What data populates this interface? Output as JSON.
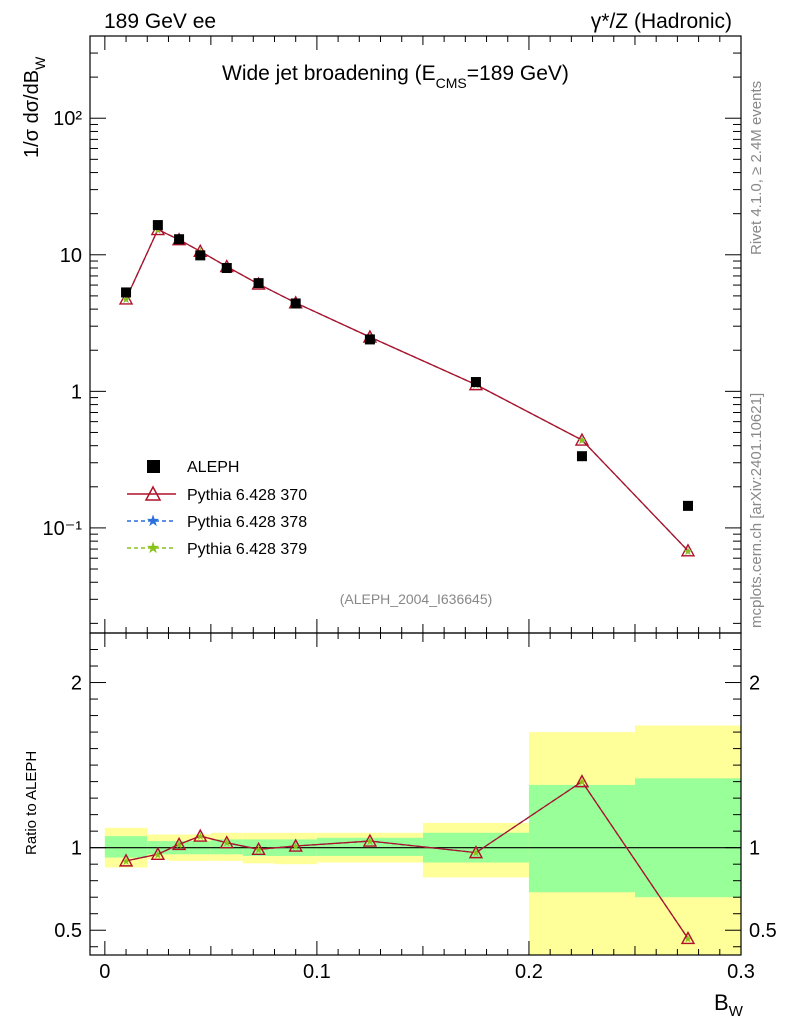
{
  "header": {
    "left_label": "189 GeV ee",
    "right_label": "γ*/Z (Hadronic)",
    "side_label_top": "Rivet 4.1.0, ≥ 2.4M events",
    "side_label_bottom": "mcplots.cern.ch [arXiv:2401.10621]"
  },
  "chart_data": {
    "type": "line",
    "title": "Wide jet broadening (E_CMS=189 GeV)",
    "title_main": "Wide jet broadening (E",
    "title_sub": "CMS",
    "title_end": "=189 GeV)",
    "analysis_label": "(ALEPH_2004_I636645)",
    "xlabel": "B_W",
    "xlabel_main": "B",
    "xlabel_sub": "W",
    "ylabel": "1/σ dσ/dB_W",
    "ylabel_main": "1/σ  dσ/dB",
    "ylabel_sub": "W",
    "ratio_ylabel": "Ratio to ALEPH",
    "xlim": [
      -0.007,
      0.3
    ],
    "ylim": [
      0.017,
      400
    ],
    "yscale": "log",
    "ratio_ylim": [
      0.35,
      2.3
    ],
    "x_ticks": [
      0,
      0.1,
      0.2,
      0.3
    ],
    "x_tick_labels": [
      "0",
      "0.1",
      "0.2",
      "0.3"
    ],
    "y_ticks": [
      0.1,
      1,
      10,
      100
    ],
    "y_tick_labels": [
      "10⁻¹",
      "1",
      "10",
      "10²"
    ],
    "ratio_ticks": [
      0.5,
      1,
      2
    ],
    "ratio_tick_labels": [
      "0.5",
      "1",
      "2"
    ],
    "bin_edges": [
      0.0,
      0.02,
      0.03,
      0.04,
      0.05,
      0.065,
      0.08,
      0.1,
      0.15,
      0.2,
      0.25,
      0.3
    ],
    "x": [
      0.01,
      0.025,
      0.035,
      0.045,
      0.0575,
      0.0725,
      0.09,
      0.125,
      0.175,
      0.225,
      0.275
    ],
    "data": {
      "name": "ALEPH",
      "values": [
        5.3,
        16.5,
        13.0,
        9.9,
        8.0,
        6.2,
        4.4,
        2.4,
        1.17,
        0.335,
        0.145
      ]
    },
    "series": [
      {
        "name": "Pythia 6.428 370",
        "color": "#b0102a",
        "marker": "triangle",
        "values": [
          4.75,
          15.3,
          12.9,
          10.6,
          8.2,
          6.1,
          4.45,
          2.5,
          1.12,
          0.44,
          0.068
        ]
      },
      {
        "name": "Pythia 6.428 378",
        "color": "#2a6fdb",
        "marker": "star",
        "values": [
          4.75,
          15.3,
          12.9,
          10.6,
          8.2,
          6.1,
          4.45,
          2.5,
          1.12,
          0.44,
          0.068
        ]
      },
      {
        "name": "Pythia 6.428 379",
        "color": "#8bc21a",
        "marker": "star",
        "values": [
          4.75,
          15.3,
          12.9,
          10.6,
          8.2,
          6.1,
          4.45,
          2.5,
          1.12,
          0.44,
          0.068
        ]
      }
    ],
    "ratio": [
      0.92,
      0.96,
      1.02,
      1.07,
      1.03,
      0.99,
      1.01,
      1.04,
      0.97,
      1.4,
      0.45
    ],
    "band_stat": {
      "lower": [
        0.94,
        0.96,
        0.96,
        0.96,
        0.96,
        0.95,
        0.95,
        0.95,
        0.91,
        0.73,
        0.7
      ],
      "upper": [
        1.07,
        1.04,
        1.04,
        1.04,
        1.05,
        1.05,
        1.05,
        1.06,
        1.09,
        1.38,
        1.42
      ]
    },
    "band_total": {
      "lower": [
        0.88,
        0.93,
        0.92,
        0.92,
        0.92,
        0.905,
        0.9,
        0.91,
        0.82,
        0.35,
        0.35
      ],
      "upper": [
        1.12,
        1.08,
        1.08,
        1.08,
        1.09,
        1.09,
        1.09,
        1.09,
        1.15,
        1.7,
        1.74
      ]
    },
    "colors": {
      "band_stat": "#99ff99",
      "band_total": "#ffff99",
      "data": "#000000"
    }
  }
}
